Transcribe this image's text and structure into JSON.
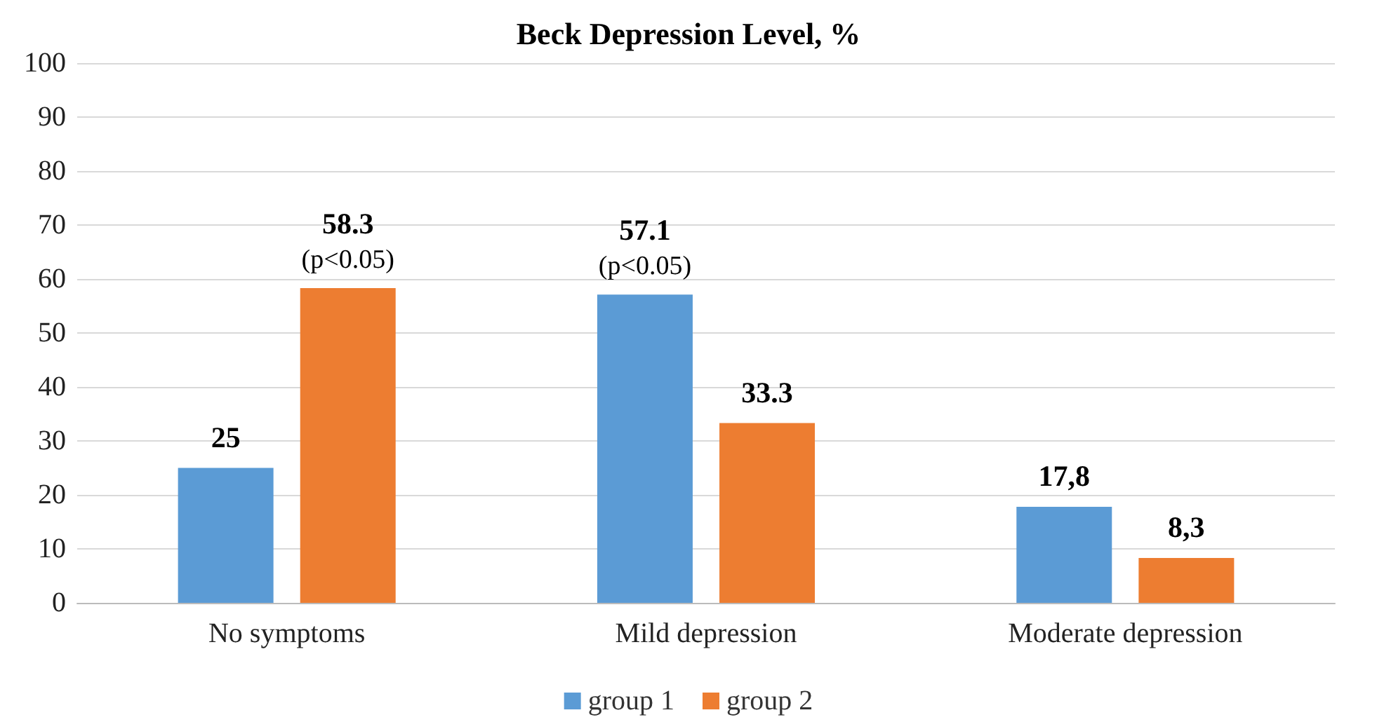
{
  "chart_data": {
    "type": "bar",
    "title": "Beck Depression Level, %",
    "categories": [
      "No symptoms",
      "Mild depression",
      "Moderate depression"
    ],
    "series": [
      {
        "name": "group 1",
        "color": "#5b9bd5",
        "values": [
          25,
          57.1,
          17.8
        ],
        "value_labels": [
          "25",
          "57.1\n(p<0.05)",
          "17,8"
        ]
      },
      {
        "name": "group 2",
        "color": "#ed7d31",
        "values": [
          58.3,
          33.3,
          8.3
        ],
        "value_labels": [
          "58.3\n(p<0.05)",
          "33.3",
          "8,3"
        ]
      }
    ],
    "ylim": [
      0,
      100
    ],
    "yticks": [
      0,
      10,
      20,
      30,
      40,
      50,
      60,
      70,
      80,
      90,
      100
    ],
    "grid": "y",
    "legend": "bottom"
  }
}
